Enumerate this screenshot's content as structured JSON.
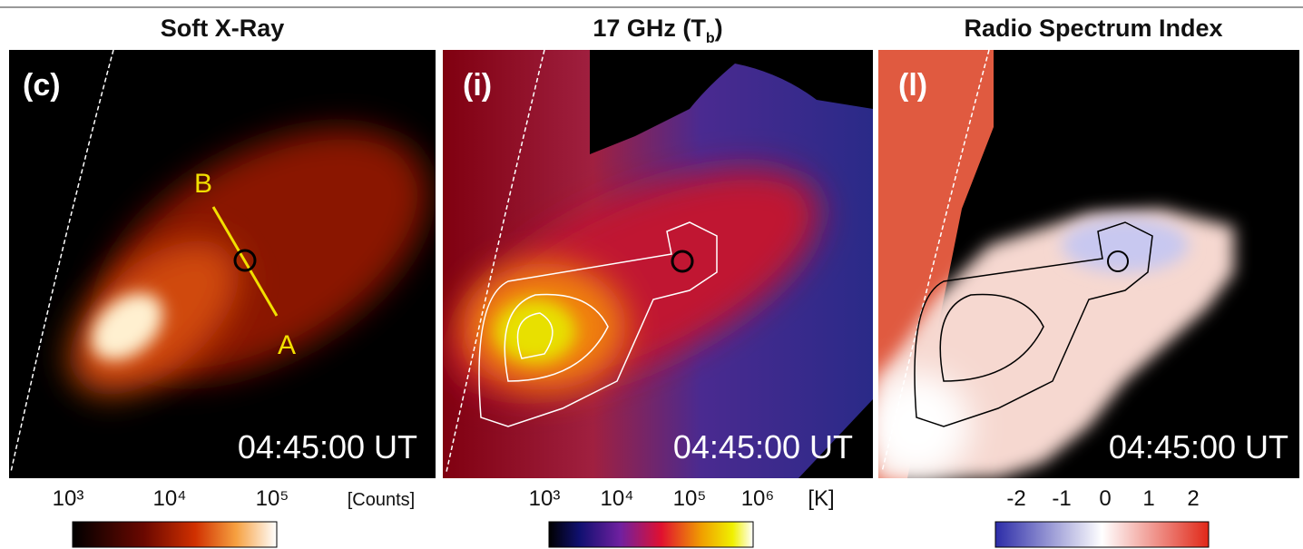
{
  "panels": [
    {
      "title": "Soft X-Ray",
      "label": "(c)",
      "time": "04:45:00 UT",
      "markers": [
        "B",
        "A"
      ],
      "colorbar": {
        "labels": [
          "10³",
          "10⁴",
          "10⁵"
        ],
        "unit": "[Counts]"
      }
    },
    {
      "title": "17 GHz (T",
      "title_sub": "b",
      "title_end": ")",
      "label": "(i)",
      "time": "04:45:00 UT",
      "colorbar": {
        "labels": [
          "10³",
          "10⁴",
          "10⁵",
          "10⁶"
        ],
        "unit": "[K]"
      }
    },
    {
      "title": "Radio Spectrum Index",
      "label": "(l)",
      "time": "04:45:00 UT",
      "colorbar": {
        "labels": [
          "-2",
          "-1",
          "0",
          "1",
          "2"
        ]
      }
    }
  ]
}
